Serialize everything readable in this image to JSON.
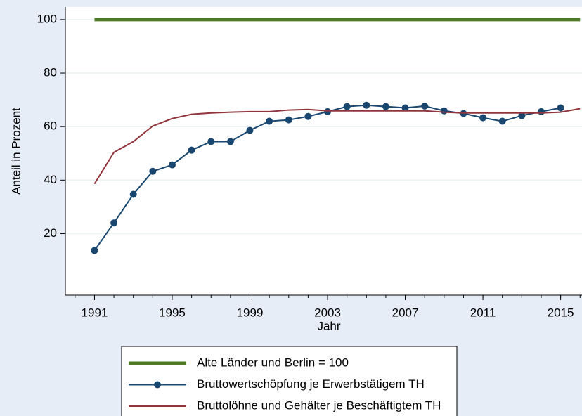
{
  "chart_data": {
    "type": "line",
    "x_label": "Jahr",
    "y_label": "Anteil in Prozent",
    "x": [
      1991,
      1992,
      1993,
      1994,
      1995,
      1996,
      1997,
      1998,
      1999,
      2000,
      2001,
      2002,
      2003,
      2004,
      2005,
      2006,
      2007,
      2008,
      2009,
      2010,
      2011,
      2012,
      2013,
      2014,
      2015,
      2016
    ],
    "series": [
      {
        "name": "Alte Länder und Berlin = 100",
        "color": "#4f7a28",
        "markers": false,
        "values": [
          100,
          100,
          100,
          100,
          100,
          100,
          100,
          100,
          100,
          100,
          100,
          100,
          100,
          100,
          100,
          100,
          100,
          100,
          100,
          100,
          100,
          100,
          100,
          100,
          100,
          100
        ]
      },
      {
        "name": "Bruttowertschöpfung je Erwerbstätigem TH",
        "color": "#1a476f",
        "markers": true,
        "values": [
          13.7,
          24,
          34.7,
          43.3,
          45.7,
          51.2,
          54.4,
          54.4,
          58.6,
          62,
          62.5,
          63.8,
          65.6,
          67.5,
          68,
          67.5,
          67,
          67.7,
          65.9,
          64.9,
          63.3,
          62,
          64.1,
          65.6,
          67,
          null
        ]
      },
      {
        "name": "Bruttolöhne und Gehälter je Beschäftigtem TH",
        "color": "#90353b",
        "markers": false,
        "values": [
          38.6,
          50.4,
          54.4,
          60.2,
          63,
          64.6,
          65.1,
          65.4,
          65.6,
          65.6,
          66.2,
          66.4,
          65.9,
          65.9,
          65.9,
          65.9,
          65.9,
          65.9,
          65.4,
          65.1,
          65.1,
          65.1,
          65.1,
          65.1,
          65.4,
          66.7
        ]
      }
    ],
    "xlim": [
      1989.5,
      2016.1
    ],
    "ylim": [
      -3,
      104.7
    ],
    "xticks": [
      1991,
      1995,
      1999,
      2003,
      2007,
      2011,
      2015
    ],
    "xminorticks": [
      1990,
      1991,
      1992,
      1993,
      1994,
      1995,
      1996,
      1997,
      1998,
      1999,
      2000,
      2001,
      2002,
      2003,
      2004,
      2005,
      2006,
      2007,
      2008,
      2009,
      2010,
      2011,
      2012,
      2013,
      2014,
      2015,
      2016
    ],
    "yticks": [
      20,
      40,
      60,
      80,
      100
    ],
    "grid": true,
    "legend": "bottom"
  }
}
